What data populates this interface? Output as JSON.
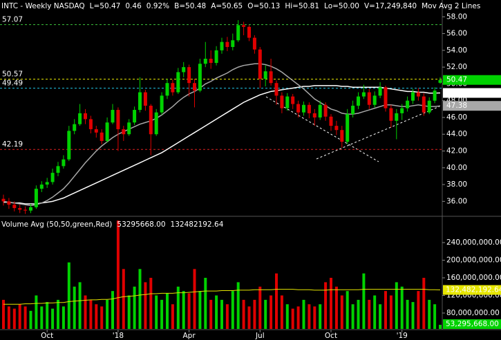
{
  "chart_data": [
    {
      "type": "candlestick",
      "title": "INTC - Weekly  NASDAQ",
      "quote": [
        "L=50.47",
        "0.46",
        "0.92%",
        "B=50.48",
        "A=50.65",
        "O=50.13",
        "Hi=50.81",
        "Lo=50.00",
        "V=17,249,840"
      ],
      "study": "Mov Avg 2 Lines",
      "categories": [
        null,
        null,
        null,
        null,
        null,
        null,
        null,
        null,
        "Oct",
        null,
        null,
        null,
        null,
        null,
        null,
        null,
        null,
        null,
        null,
        null,
        null,
        "'18",
        null,
        null,
        null,
        null,
        null,
        null,
        null,
        null,
        null,
        null,
        null,
        null,
        "Apr",
        null,
        null,
        null,
        null,
        null,
        null,
        null,
        null,
        null,
        null,
        null,
        null,
        "Jul",
        null,
        null,
        null,
        null,
        null,
        null,
        null,
        null,
        null,
        null,
        null,
        null,
        "Oct",
        null,
        null,
        null,
        null,
        null,
        null,
        null,
        null,
        null,
        null,
        null,
        null,
        "'19",
        null,
        null,
        null,
        null,
        null,
        null,
        null
      ],
      "open": [
        36.3,
        36.0,
        35.6,
        35.2,
        35.0,
        34.9,
        35.3,
        37.5,
        38.0,
        38.3,
        39.4,
        40.2,
        41.0,
        44.4,
        45.2,
        46.5,
        45.8,
        44.6,
        44.2,
        43.2,
        45.4,
        46.9,
        44.6,
        44.0,
        45.4,
        46.9,
        49.0,
        47.4,
        44.0,
        46.6,
        48.6,
        50.1,
        49.0,
        51.4,
        52.0,
        50.1,
        49.2,
        52.4,
        53.0,
        52.5,
        54.0,
        55.0,
        54.4,
        55.2,
        57.0,
        56.8,
        55.5,
        54.1,
        50.6,
        51.5,
        50.1,
        48.6,
        47.1,
        48.5,
        47.6,
        46.6,
        47.5,
        46.5,
        46.0,
        47.5,
        46.1,
        45.0,
        44.5,
        43.1,
        46.4,
        47.4,
        48.5,
        49.0,
        47.5,
        48.6,
        49.6,
        47.1,
        45.6,
        46.5,
        47.1,
        48.0,
        49.0,
        48.5,
        46.6,
        48.0,
        50.13
      ],
      "high": [
        36.8,
        36.4,
        36.0,
        35.6,
        35.4,
        35.7,
        37.9,
        38.4,
        38.8,
        39.9,
        40.7,
        41.5,
        45.0,
        45.8,
        47.6,
        47.0,
        46.2,
        45.0,
        44.6,
        46.0,
        47.6,
        47.2,
        45.0,
        45.8,
        47.3,
        50.8,
        49.3,
        47.6,
        47.0,
        49.0,
        50.6,
        50.5,
        51.9,
        52.6,
        52.3,
        50.6,
        53.0,
        55.0,
        54.0,
        54.5,
        55.5,
        55.6,
        56.0,
        57.6,
        57.4,
        57.0,
        55.8,
        54.4,
        52.2,
        53.0,
        50.4,
        49.0,
        48.9,
        48.8,
        48.0,
        47.9,
        47.8,
        47.0,
        48.0,
        47.8,
        46.4,
        45.6,
        45.0,
        47.0,
        48.0,
        49.0,
        49.9,
        49.4,
        49.1,
        50.2,
        49.8,
        47.5,
        47.0,
        47.6,
        48.5,
        49.4,
        49.5,
        48.9,
        48.4,
        49.6,
        50.81
      ],
      "low": [
        35.5,
        35.1,
        34.8,
        34.6,
        34.5,
        34.6,
        35.1,
        37.1,
        37.6,
        38.0,
        39.0,
        39.9,
        40.8,
        44.0,
        45.0,
        45.2,
        44.1,
        43.6,
        42.8,
        43.0,
        45.2,
        42.0,
        43.2,
        43.8,
        45.1,
        46.6,
        46.8,
        41.5,
        43.8,
        46.3,
        48.2,
        48.6,
        48.8,
        50.8,
        48.5,
        47.2,
        49.0,
        52.0,
        51.8,
        52.2,
        53.6,
        53.9,
        54.0,
        55.0,
        55.8,
        55.1,
        53.6,
        49.5,
        49.7,
        49.8,
        47.5,
        46.5,
        46.8,
        47.0,
        46.0,
        46.2,
        45.9,
        45.0,
        45.7,
        45.6,
        44.4,
        43.9,
        42.4,
        42.8,
        46.0,
        47.0,
        48.2,
        47.0,
        47.2,
        48.3,
        46.7,
        44.8,
        43.4,
        45.7,
        46.7,
        47.6,
        48.0,
        46.2,
        46.4,
        47.7,
        50.0
      ],
      "close": [
        36.0,
        35.6,
        35.2,
        35.0,
        34.9,
        35.3,
        37.5,
        38.0,
        38.3,
        39.4,
        40.2,
        41.0,
        44.4,
        45.2,
        46.5,
        45.8,
        44.6,
        44.2,
        43.2,
        45.4,
        46.9,
        44.6,
        44.0,
        45.4,
        46.9,
        49.0,
        47.4,
        44.0,
        46.6,
        48.6,
        50.1,
        49.0,
        51.4,
        52.0,
        50.1,
        49.2,
        52.4,
        53.0,
        52.5,
        54.0,
        55.0,
        54.4,
        55.2,
        57.0,
        56.8,
        55.5,
        54.1,
        50.6,
        51.5,
        50.1,
        48.6,
        47.1,
        48.5,
        47.6,
        46.6,
        47.5,
        46.5,
        46.0,
        47.5,
        46.1,
        45.0,
        44.5,
        43.1,
        46.4,
        47.4,
        48.5,
        49.0,
        47.5,
        48.6,
        49.6,
        47.1,
        45.6,
        46.5,
        47.1,
        48.0,
        49.0,
        48.5,
        46.6,
        48.0,
        49.2,
        50.47
      ],
      "up_color": "#00d200",
      "down_color": "#e00000",
      "lines": [
        {
          "color": "#ffffff",
          "values": [
            35.9,
            35.9,
            35.8,
            35.8,
            35.7,
            35.7,
            35.7,
            35.8,
            35.9,
            36.0,
            36.2,
            36.4,
            36.7,
            37.0,
            37.3,
            37.6,
            37.9,
            38.2,
            38.5,
            38.8,
            39.1,
            39.4,
            39.7,
            40.0,
            40.3,
            40.6,
            40.9,
            41.2,
            41.5,
            41.8,
            42.2,
            42.6,
            43.0,
            43.4,
            43.8,
            44.2,
            44.6,
            45.0,
            45.4,
            45.8,
            46.2,
            46.6,
            47.0,
            47.4,
            47.8,
            48.1,
            48.4,
            48.7,
            48.9,
            49.1,
            49.2,
            49.3,
            49.4,
            49.5,
            49.6,
            49.7,
            49.7,
            49.8,
            49.8,
            49.8,
            49.8,
            49.8,
            49.7,
            49.7,
            49.6,
            49.6,
            49.6,
            49.6,
            49.6,
            49.6,
            49.5,
            49.4,
            49.3,
            49.2,
            49.1,
            49.1,
            49.0,
            49.0,
            48.9,
            48.9,
            48.92
          ]
        },
        {
          "color": "#a8a8a8",
          "values": [
            36.0,
            35.9,
            35.8,
            35.7,
            35.6,
            35.5,
            35.6,
            35.8,
            36.1,
            36.5,
            37.0,
            37.5,
            38.2,
            39.0,
            39.8,
            40.6,
            41.3,
            42.0,
            42.6,
            43.1,
            43.6,
            44.0,
            44.3,
            44.6,
            44.9,
            45.2,
            45.4,
            45.6,
            45.9,
            46.3,
            46.8,
            47.3,
            47.9,
            48.4,
            48.8,
            49.1,
            49.5,
            50.0,
            50.3,
            50.7,
            51.0,
            51.3,
            51.7,
            52.0,
            52.2,
            52.3,
            52.4,
            52.4,
            52.3,
            52.1,
            51.8,
            51.4,
            50.9,
            50.4,
            49.9,
            49.4,
            48.8,
            48.2,
            47.8,
            47.4,
            47.0,
            46.8,
            46.5,
            46.4,
            46.4,
            46.5,
            46.7,
            46.9,
            47.1,
            47.3,
            47.5,
            47.5,
            47.4,
            47.3,
            47.3,
            47.4,
            47.5,
            47.4,
            47.3,
            47.3,
            47.38
          ]
        }
      ],
      "hlines": [
        {
          "value": 57.07,
          "color": "#3ec83e"
        },
        {
          "value": 50.57,
          "color": "#e6e600"
        },
        {
          "value": 49.49,
          "color": "#20c8e6"
        },
        {
          "value": 42.19,
          "color": "#e02020"
        }
      ],
      "ylim": [
        34.3,
        60.0
      ],
      "yticks": [
        {
          "value": 36,
          "label": "36.00"
        },
        {
          "value": 38,
          "label": "38.00"
        },
        {
          "value": 40,
          "label": "40.00"
        },
        {
          "value": 42,
          "label": "42.00"
        },
        {
          "value": 44,
          "label": "44.00"
        },
        {
          "value": 46,
          "label": "46.00"
        },
        {
          "value": 48,
          "label": "48.00"
        },
        {
          "value": 50,
          "label": "50.00"
        },
        {
          "value": 52,
          "label": "52.00"
        },
        {
          "value": 54,
          "label": "54.00"
        },
        {
          "value": 56,
          "label": "56.00"
        },
        {
          "value": 58,
          "label": "58.00"
        }
      ]
    },
    {
      "type": "bar",
      "title": "Volume Avg (50,50,green,Red)",
      "legend_values": [
        "53295668.00",
        "132482192.64"
      ],
      "values": [
        110000000.0,
        95000000.0,
        90000000.0,
        100000000.0,
        95000000.0,
        85000000.0,
        120000000.0,
        95000000.0,
        105000000.0,
        90000000.0,
        110000000.0,
        95000000.0,
        195000000.0,
        140000000.0,
        150000000.0,
        120000000.0,
        110000000.0,
        100000000.0,
        95000000.0,
        110000000.0,
        130000000.0,
        290000000.0,
        180000000.0,
        120000000.0,
        140000000.0,
        180000000.0,
        150000000.0,
        160000000.0,
        120000000.0,
        110000000.0,
        125000000.0,
        100000000.0,
        140000000.0,
        130000000.0,
        125000000.0,
        180000000.0,
        130000000.0,
        160000000.0,
        110000000.0,
        120000000.0,
        110000000.0,
        100000000.0,
        130000000.0,
        150000000.0,
        110000000.0,
        95000000.0,
        110000000.0,
        140000000.0,
        110000000.0,
        120000000.0,
        170000000.0,
        120000000.0,
        100000000.0,
        90000000.0,
        95000000.0,
        110000000.0,
        100000000.0,
        95000000.0,
        100000000.0,
        150000000.0,
        160000000.0,
        140000000.0,
        120000000.0,
        130000000.0,
        100000000.0,
        110000000.0,
        170000000.0,
        110000000.0,
        120000000.0,
        100000000.0,
        130000000.0,
        120000000.0,
        150000000.0,
        140000000.0,
        110000000.0,
        105000000.0,
        130000000.0,
        160000000.0,
        110000000.0,
        100000000.0,
        53295668
      ],
      "value_labels": [
        null,
        null,
        null,
        null,
        null,
        null,
        null,
        null,
        null,
        null,
        null,
        null,
        null,
        null,
        null,
        null,
        null,
        null,
        null,
        null,
        null,
        null,
        null,
        null,
        null,
        null,
        null,
        null,
        null,
        null,
        null,
        null,
        null,
        null,
        null,
        null,
        null,
        null,
        null,
        null,
        null,
        null,
        null,
        null,
        null,
        null,
        null,
        null,
        null,
        null,
        null,
        null,
        null,
        null,
        null,
        null,
        null,
        null,
        null,
        null,
        null,
        null,
        null,
        null,
        null,
        null,
        null,
        null,
        null,
        null,
        null,
        null,
        null,
        null,
        null,
        null,
        null,
        null,
        null,
        null,
        "53,295,668.00"
      ],
      "avg": {
        "color": "#e6e600",
        "values": [
          100000000.0,
          100000000.0,
          100000000.0,
          100000000.0,
          101000000.0,
          101000000.0,
          102000000.0,
          102000000.0,
          103000000.0,
          103000000.0,
          104000000.0,
          104000000.0,
          106000000.0,
          107000000.0,
          108000000.0,
          109000000.0,
          110000000.0,
          110000000.0,
          111000000.0,
          111000000.0,
          112000000.0,
          115000000.0,
          117000000.0,
          118000000.0,
          119000000.0,
          121000000.0,
          122000000.0,
          124000000.0,
          124000000.0,
          125000000.0,
          125000000.0,
          125000000.0,
          126000000.0,
          126000000.0,
          127000000.0,
          128000000.0,
          129000000.0,
          130000000.0,
          130000000.0,
          130000000.0,
          131000000.0,
          131000000.0,
          131000000.0,
          132000000.0,
          132000000.0,
          132000000.0,
          133000000.0,
          133000000.0,
          133000000.0,
          133000000.0,
          134000000.0,
          134000000.0,
          134000000.0,
          134000000.0,
          133000000.0,
          133000000.0,
          133000000.0,
          132000000.0,
          132000000.0,
          132000000.0,
          133000000.0,
          133000000.0,
          133000000.0,
          133000000.0,
          133000000.0,
          133000000.0,
          134000000.0,
          134000000.0,
          134000000.0,
          134000000.0,
          134000000.0,
          134000000.0,
          134000000.0,
          134000000.0,
          134000000.0,
          134000000.0,
          134000000.0,
          134000000.0,
          133000000.0,
          133000000.0,
          132482192.64
        ],
        "value_labels": [
          null,
          null,
          null,
          null,
          null,
          null,
          null,
          null,
          null,
          null,
          null,
          null,
          null,
          null,
          null,
          null,
          null,
          null,
          null,
          null,
          null,
          null,
          null,
          null,
          null,
          null,
          null,
          null,
          null,
          null,
          null,
          null,
          null,
          null,
          null,
          null,
          null,
          null,
          null,
          null,
          null,
          null,
          null,
          null,
          null,
          null,
          null,
          null,
          null,
          null,
          null,
          null,
          null,
          null,
          null,
          null,
          null,
          null,
          null,
          null,
          null,
          null,
          null,
          null,
          null,
          null,
          null,
          null,
          null,
          null,
          null,
          null,
          null,
          null,
          null,
          null,
          null,
          null,
          null,
          null,
          "132,482,192.64"
        ]
      },
      "ylim": [
        43900000.0,
        295000000.0
      ],
      "yticks": [
        {
          "value": 80000000.0,
          "label": "80,000,000.00"
        },
        {
          "value": 120000000.0,
          "label": "120,000,000.00"
        },
        {
          "value": 160000000.0,
          "label": "160,000,000.00"
        },
        {
          "value": 200000000.0,
          "label": "200,000,000.00"
        },
        {
          "value": 240000000.0,
          "label": "240,000,000.00"
        }
      ]
    }
  ]
}
